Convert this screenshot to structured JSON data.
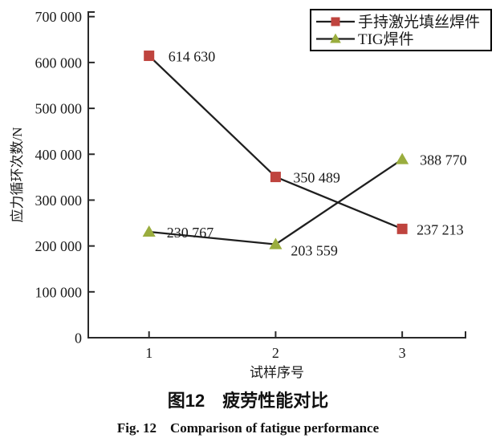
{
  "figure": {
    "caption_cn": "图12　疲劳性能对比",
    "caption_en": "Fig. 12　Comparison of fatigue performance"
  },
  "chart_data": {
    "type": "line",
    "title": "",
    "xlabel": "试样序号",
    "ylabel": "应力循环次数/N",
    "x": [
      1,
      2,
      3
    ],
    "x_tick_labels": [
      "1",
      "2",
      "3"
    ],
    "y_ticks": [
      0,
      100000,
      200000,
      300000,
      400000,
      500000,
      600000,
      700000
    ],
    "y_tick_labels": [
      "0",
      "100 000",
      "200 000",
      "300 000",
      "400 000",
      "500 000",
      "600 000",
      "700 000"
    ],
    "xlim": [
      0.52,
      3.5
    ],
    "ylim": [
      0,
      710000
    ],
    "grid": false,
    "legend_position": "top-right",
    "line_color": "#1f1f1f",
    "axis_color": "#2a2a2a",
    "series": [
      {
        "name": "手持激光填丝焊件",
        "marker": "square",
        "marker_color": "#bf443e",
        "values": [
          614630,
          350489,
          237213
        ],
        "point_labels": [
          "614 630",
          "350 489",
          "237 213"
        ],
        "label_offsets": [
          [
            24,
            7
          ],
          [
            22,
            7
          ],
          [
            18,
            7
          ]
        ]
      },
      {
        "name": "TIG焊件",
        "marker": "triangle",
        "marker_color": "#9aad3e",
        "values": [
          230767,
          203559,
          388770
        ],
        "point_labels": [
          "230 767",
          "203 559",
          "388 770"
        ],
        "label_offsets": [
          [
            22,
            7
          ],
          [
            19,
            14
          ],
          [
            22,
            7
          ]
        ]
      }
    ]
  }
}
